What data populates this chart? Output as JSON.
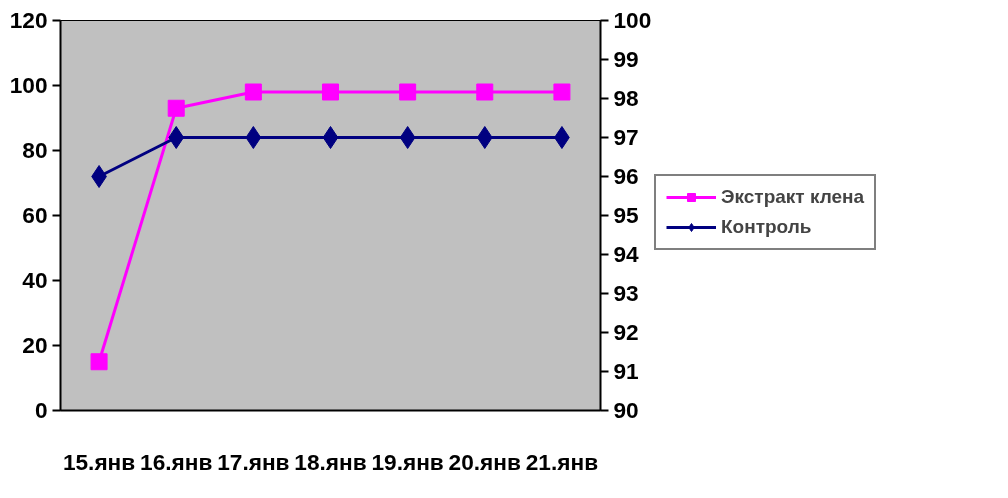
{
  "chart_data": {
    "type": "line",
    "categories": [
      "15.янв",
      "16.янв",
      "17.янв",
      "18.янв",
      "19.янв",
      "20.янв",
      "21.янв"
    ],
    "series": [
      {
        "name": "Экстракт клена",
        "color": "#ff00ff",
        "marker": "square",
        "values": [
          15,
          93,
          98,
          98,
          98,
          98,
          98
        ]
      },
      {
        "name": "Контроль",
        "color": "#000080",
        "marker": "diamond",
        "axis": "y2",
        "values": [
          96,
          97,
          97,
          97,
          97,
          97,
          97
        ]
      }
    ],
    "ylim": [
      0,
      120
    ],
    "yticks": [
      0,
      20,
      40,
      60,
      80,
      100,
      120
    ],
    "y2lim": [
      90,
      100
    ],
    "y2ticks": [
      90,
      91,
      92,
      93,
      94,
      95,
      96,
      97,
      98,
      99,
      100
    ],
    "grid": false,
    "legend": "right",
    "line_style": "solid"
  }
}
